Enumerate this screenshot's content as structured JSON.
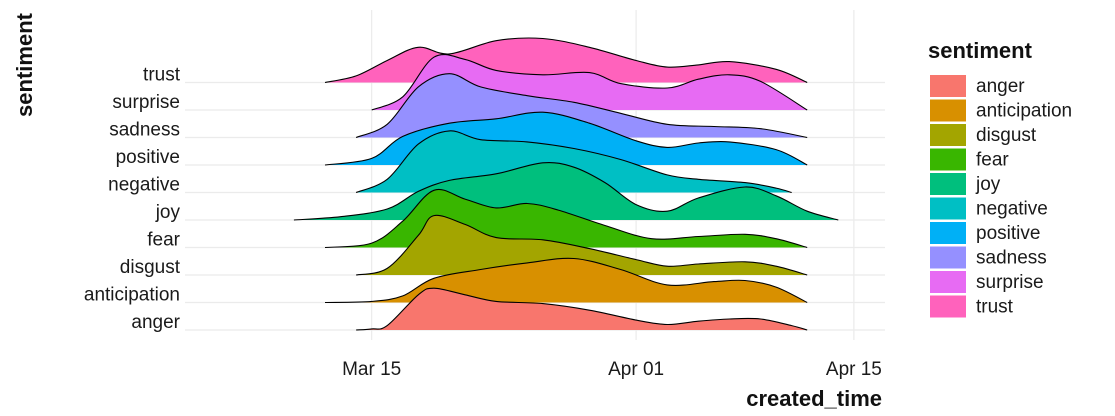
{
  "chart_data": {
    "type": "area",
    "subtype": "ridgeline",
    "title": "",
    "xlabel": "created_time",
    "ylabel": "sentiment",
    "x_ticks": [
      "Mar 15",
      "Apr 01",
      "Apr 15"
    ],
    "xlim": [
      "2020-03-03",
      "2020-04-17"
    ],
    "categories": [
      "anger",
      "anticipation",
      "disgust",
      "fear",
      "joy",
      "negative",
      "positive",
      "sadness",
      "surprise",
      "trust"
    ],
    "x_days": [
      0,
      3,
      6,
      9,
      12,
      15,
      18,
      21,
      24,
      27,
      30,
      33,
      36
    ],
    "x_dates": [
      "2020-03-14",
      "2020-03-17",
      "2020-03-20",
      "2020-03-23",
      "2020-03-26",
      "2020-03-29",
      "2020-04-01",
      "2020-04-04",
      "2020-04-07",
      "2020-04-10",
      "2020-04-13",
      "2020-04-16",
      "2020-04-19"
    ],
    "series": [
      {
        "name": "anger",
        "color": "#F8766D",
        "start": "2020-03-14",
        "end": "2020-04-12",
        "points": [
          [
            "2020-03-14",
            0.0
          ],
          [
            "2020-03-15",
            0.05
          ],
          [
            "2020-03-16",
            0.2
          ],
          [
            "2020-03-18",
            1.6
          ],
          [
            "2020-03-19",
            1.9
          ],
          [
            "2020-03-21",
            1.6
          ],
          [
            "2020-03-23",
            1.3
          ],
          [
            "2020-03-26",
            1.2
          ],
          [
            "2020-03-29",
            0.9
          ],
          [
            "2020-04-01",
            0.45
          ],
          [
            "2020-04-03",
            0.25
          ],
          [
            "2020-04-05",
            0.4
          ],
          [
            "2020-04-07",
            0.5
          ],
          [
            "2020-04-09",
            0.5
          ],
          [
            "2020-04-11",
            0.2
          ],
          [
            "2020-04-12",
            0.0
          ]
        ]
      },
      {
        "name": "anticipation",
        "color": "#D89000",
        "start": "2020-03-12",
        "end": "2020-04-12",
        "points": [
          [
            "2020-03-12",
            0.0
          ],
          [
            "2020-03-15",
            0.05
          ],
          [
            "2020-03-17",
            0.3
          ],
          [
            "2020-03-19",
            1.1
          ],
          [
            "2020-03-22",
            1.5
          ],
          [
            "2020-03-25",
            1.8
          ],
          [
            "2020-03-28",
            2.0
          ],
          [
            "2020-03-31",
            1.5
          ],
          [
            "2020-04-03",
            0.8
          ],
          [
            "2020-04-06",
            0.95
          ],
          [
            "2020-04-08",
            1.0
          ],
          [
            "2020-04-10",
            0.7
          ],
          [
            "2020-04-12",
            0.0
          ]
        ]
      },
      {
        "name": "disgust",
        "color": "#A3A500",
        "start": "2020-03-14",
        "end": "2020-04-12",
        "points": [
          [
            "2020-03-14",
            0.0
          ],
          [
            "2020-03-16",
            0.3
          ],
          [
            "2020-03-18",
            1.8
          ],
          [
            "2020-03-19",
            2.7
          ],
          [
            "2020-03-21",
            2.3
          ],
          [
            "2020-03-23",
            1.7
          ],
          [
            "2020-03-26",
            1.6
          ],
          [
            "2020-03-29",
            1.2
          ],
          [
            "2020-04-01",
            0.7
          ],
          [
            "2020-04-03",
            0.4
          ],
          [
            "2020-04-05",
            0.5
          ],
          [
            "2020-04-08",
            0.6
          ],
          [
            "2020-04-10",
            0.4
          ],
          [
            "2020-04-12",
            0.0
          ]
        ]
      },
      {
        "name": "fear",
        "color": "#39B600",
        "start": "2020-03-12",
        "end": "2020-04-12",
        "points": [
          [
            "2020-03-12",
            0.0
          ],
          [
            "2020-03-15",
            0.2
          ],
          [
            "2020-03-17",
            1.2
          ],
          [
            "2020-03-19",
            2.6
          ],
          [
            "2020-03-21",
            2.2
          ],
          [
            "2020-03-23",
            1.8
          ],
          [
            "2020-03-25",
            2.0
          ],
          [
            "2020-03-27",
            1.7
          ],
          [
            "2020-03-30",
            1.0
          ],
          [
            "2020-04-02",
            0.4
          ],
          [
            "2020-04-05",
            0.5
          ],
          [
            "2020-04-08",
            0.6
          ],
          [
            "2020-04-10",
            0.4
          ],
          [
            "2020-04-12",
            0.0
          ]
        ]
      },
      {
        "name": "joy",
        "color": "#00BF7D",
        "start": "2020-03-10",
        "end": "2020-04-14",
        "points": [
          [
            "2020-03-10",
            0.0
          ],
          [
            "2020-03-13",
            0.15
          ],
          [
            "2020-03-16",
            0.5
          ],
          [
            "2020-03-18",
            1.3
          ],
          [
            "2020-03-20",
            1.8
          ],
          [
            "2020-03-23",
            2.1
          ],
          [
            "2020-03-26",
            2.6
          ],
          [
            "2020-03-28",
            2.4
          ],
          [
            "2020-03-30",
            1.7
          ],
          [
            "2020-04-01",
            0.7
          ],
          [
            "2020-04-03",
            0.4
          ],
          [
            "2020-04-05",
            1.0
          ],
          [
            "2020-04-08",
            1.5
          ],
          [
            "2020-04-10",
            1.1
          ],
          [
            "2020-04-12",
            0.4
          ],
          [
            "2020-04-14",
            0.0
          ]
        ]
      },
      {
        "name": "negative",
        "color": "#00BFC4",
        "start": "2020-03-14",
        "end": "2020-04-11",
        "points": [
          [
            "2020-03-14",
            0.0
          ],
          [
            "2020-03-16",
            0.6
          ],
          [
            "2020-03-18",
            2.2
          ],
          [
            "2020-03-20",
            2.8
          ],
          [
            "2020-03-22",
            2.4
          ],
          [
            "2020-03-25",
            2.3
          ],
          [
            "2020-03-28",
            2.0
          ],
          [
            "2020-03-31",
            1.5
          ],
          [
            "2020-04-03",
            0.8
          ],
          [
            "2020-04-05",
            0.6
          ],
          [
            "2020-04-08",
            0.45
          ],
          [
            "2020-04-10",
            0.2
          ],
          [
            "2020-04-11",
            0.0
          ]
        ]
      },
      {
        "name": "positive",
        "color": "#00B0F6",
        "start": "2020-03-12",
        "end": "2020-04-12",
        "points": [
          [
            "2020-03-12",
            0.0
          ],
          [
            "2020-03-15",
            0.3
          ],
          [
            "2020-03-17",
            1.3
          ],
          [
            "2020-03-20",
            1.9
          ],
          [
            "2020-03-23",
            2.1
          ],
          [
            "2020-03-26",
            2.4
          ],
          [
            "2020-03-29",
            1.9
          ],
          [
            "2020-04-01",
            1.1
          ],
          [
            "2020-04-03",
            0.8
          ],
          [
            "2020-04-05",
            1.0
          ],
          [
            "2020-04-07",
            1.05
          ],
          [
            "2020-04-10",
            0.7
          ],
          [
            "2020-04-12",
            0.0
          ]
        ]
      },
      {
        "name": "sadness",
        "color": "#9590FF",
        "start": "2020-03-14",
        "end": "2020-04-12",
        "points": [
          [
            "2020-03-14",
            0.0
          ],
          [
            "2020-03-16",
            0.6
          ],
          [
            "2020-03-18",
            2.3
          ],
          [
            "2020-03-20",
            2.9
          ],
          [
            "2020-03-22",
            2.3
          ],
          [
            "2020-03-25",
            1.9
          ],
          [
            "2020-03-28",
            1.6
          ],
          [
            "2020-03-31",
            1.1
          ],
          [
            "2020-04-03",
            0.6
          ],
          [
            "2020-04-06",
            0.5
          ],
          [
            "2020-04-09",
            0.4
          ],
          [
            "2020-04-12",
            0.0
          ]
        ]
      },
      {
        "name": "surprise",
        "color": "#E76BF3",
        "start": "2020-03-15",
        "end": "2020-04-12",
        "points": [
          [
            "2020-03-15",
            0.0
          ],
          [
            "2020-03-17",
            0.6
          ],
          [
            "2020-03-19",
            2.4
          ],
          [
            "2020-03-21",
            2.3
          ],
          [
            "2020-03-23",
            1.8
          ],
          [
            "2020-03-26",
            1.6
          ],
          [
            "2020-03-29",
            1.7
          ],
          [
            "2020-03-31",
            1.2
          ],
          [
            "2020-04-03",
            1.0
          ],
          [
            "2020-04-05",
            1.4
          ],
          [
            "2020-04-07",
            1.6
          ],
          [
            "2020-04-09",
            1.3
          ],
          [
            "2020-04-12",
            0.0
          ]
        ]
      },
      {
        "name": "trust",
        "color": "#FF62BC",
        "start": "2020-03-12",
        "end": "2020-04-12",
        "points": [
          [
            "2020-03-12",
            0.0
          ],
          [
            "2020-03-14",
            0.3
          ],
          [
            "2020-03-16",
            1.0
          ],
          [
            "2020-03-18",
            1.6
          ],
          [
            "2020-03-20",
            1.3
          ],
          [
            "2020-03-23",
            1.9
          ],
          [
            "2020-03-26",
            2.0
          ],
          [
            "2020-03-29",
            1.6
          ],
          [
            "2020-04-01",
            1.0
          ],
          [
            "2020-04-03",
            0.7
          ],
          [
            "2020-04-05",
            0.8
          ],
          [
            "2020-04-07",
            0.95
          ],
          [
            "2020-04-10",
            0.6
          ],
          [
            "2020-04-12",
            0.0
          ]
        ]
      }
    ],
    "legend": {
      "title": "sentiment",
      "position": "right",
      "entries": [
        {
          "label": "anger",
          "color": "#F8766D"
        },
        {
          "label": "anticipation",
          "color": "#D89000"
        },
        {
          "label": "disgust",
          "color": "#A3A500"
        },
        {
          "label": "fear",
          "color": "#39B600"
        },
        {
          "label": "joy",
          "color": "#00BF7D"
        },
        {
          "label": "negative",
          "color": "#00BFC4"
        },
        {
          "label": "positive",
          "color": "#00B0F6"
        },
        {
          "label": "sadness",
          "color": "#9590FF"
        },
        {
          "label": "surprise",
          "color": "#E76BF3"
        },
        {
          "label": "trust",
          "color": "#FF62BC"
        }
      ]
    },
    "grid": true
  }
}
